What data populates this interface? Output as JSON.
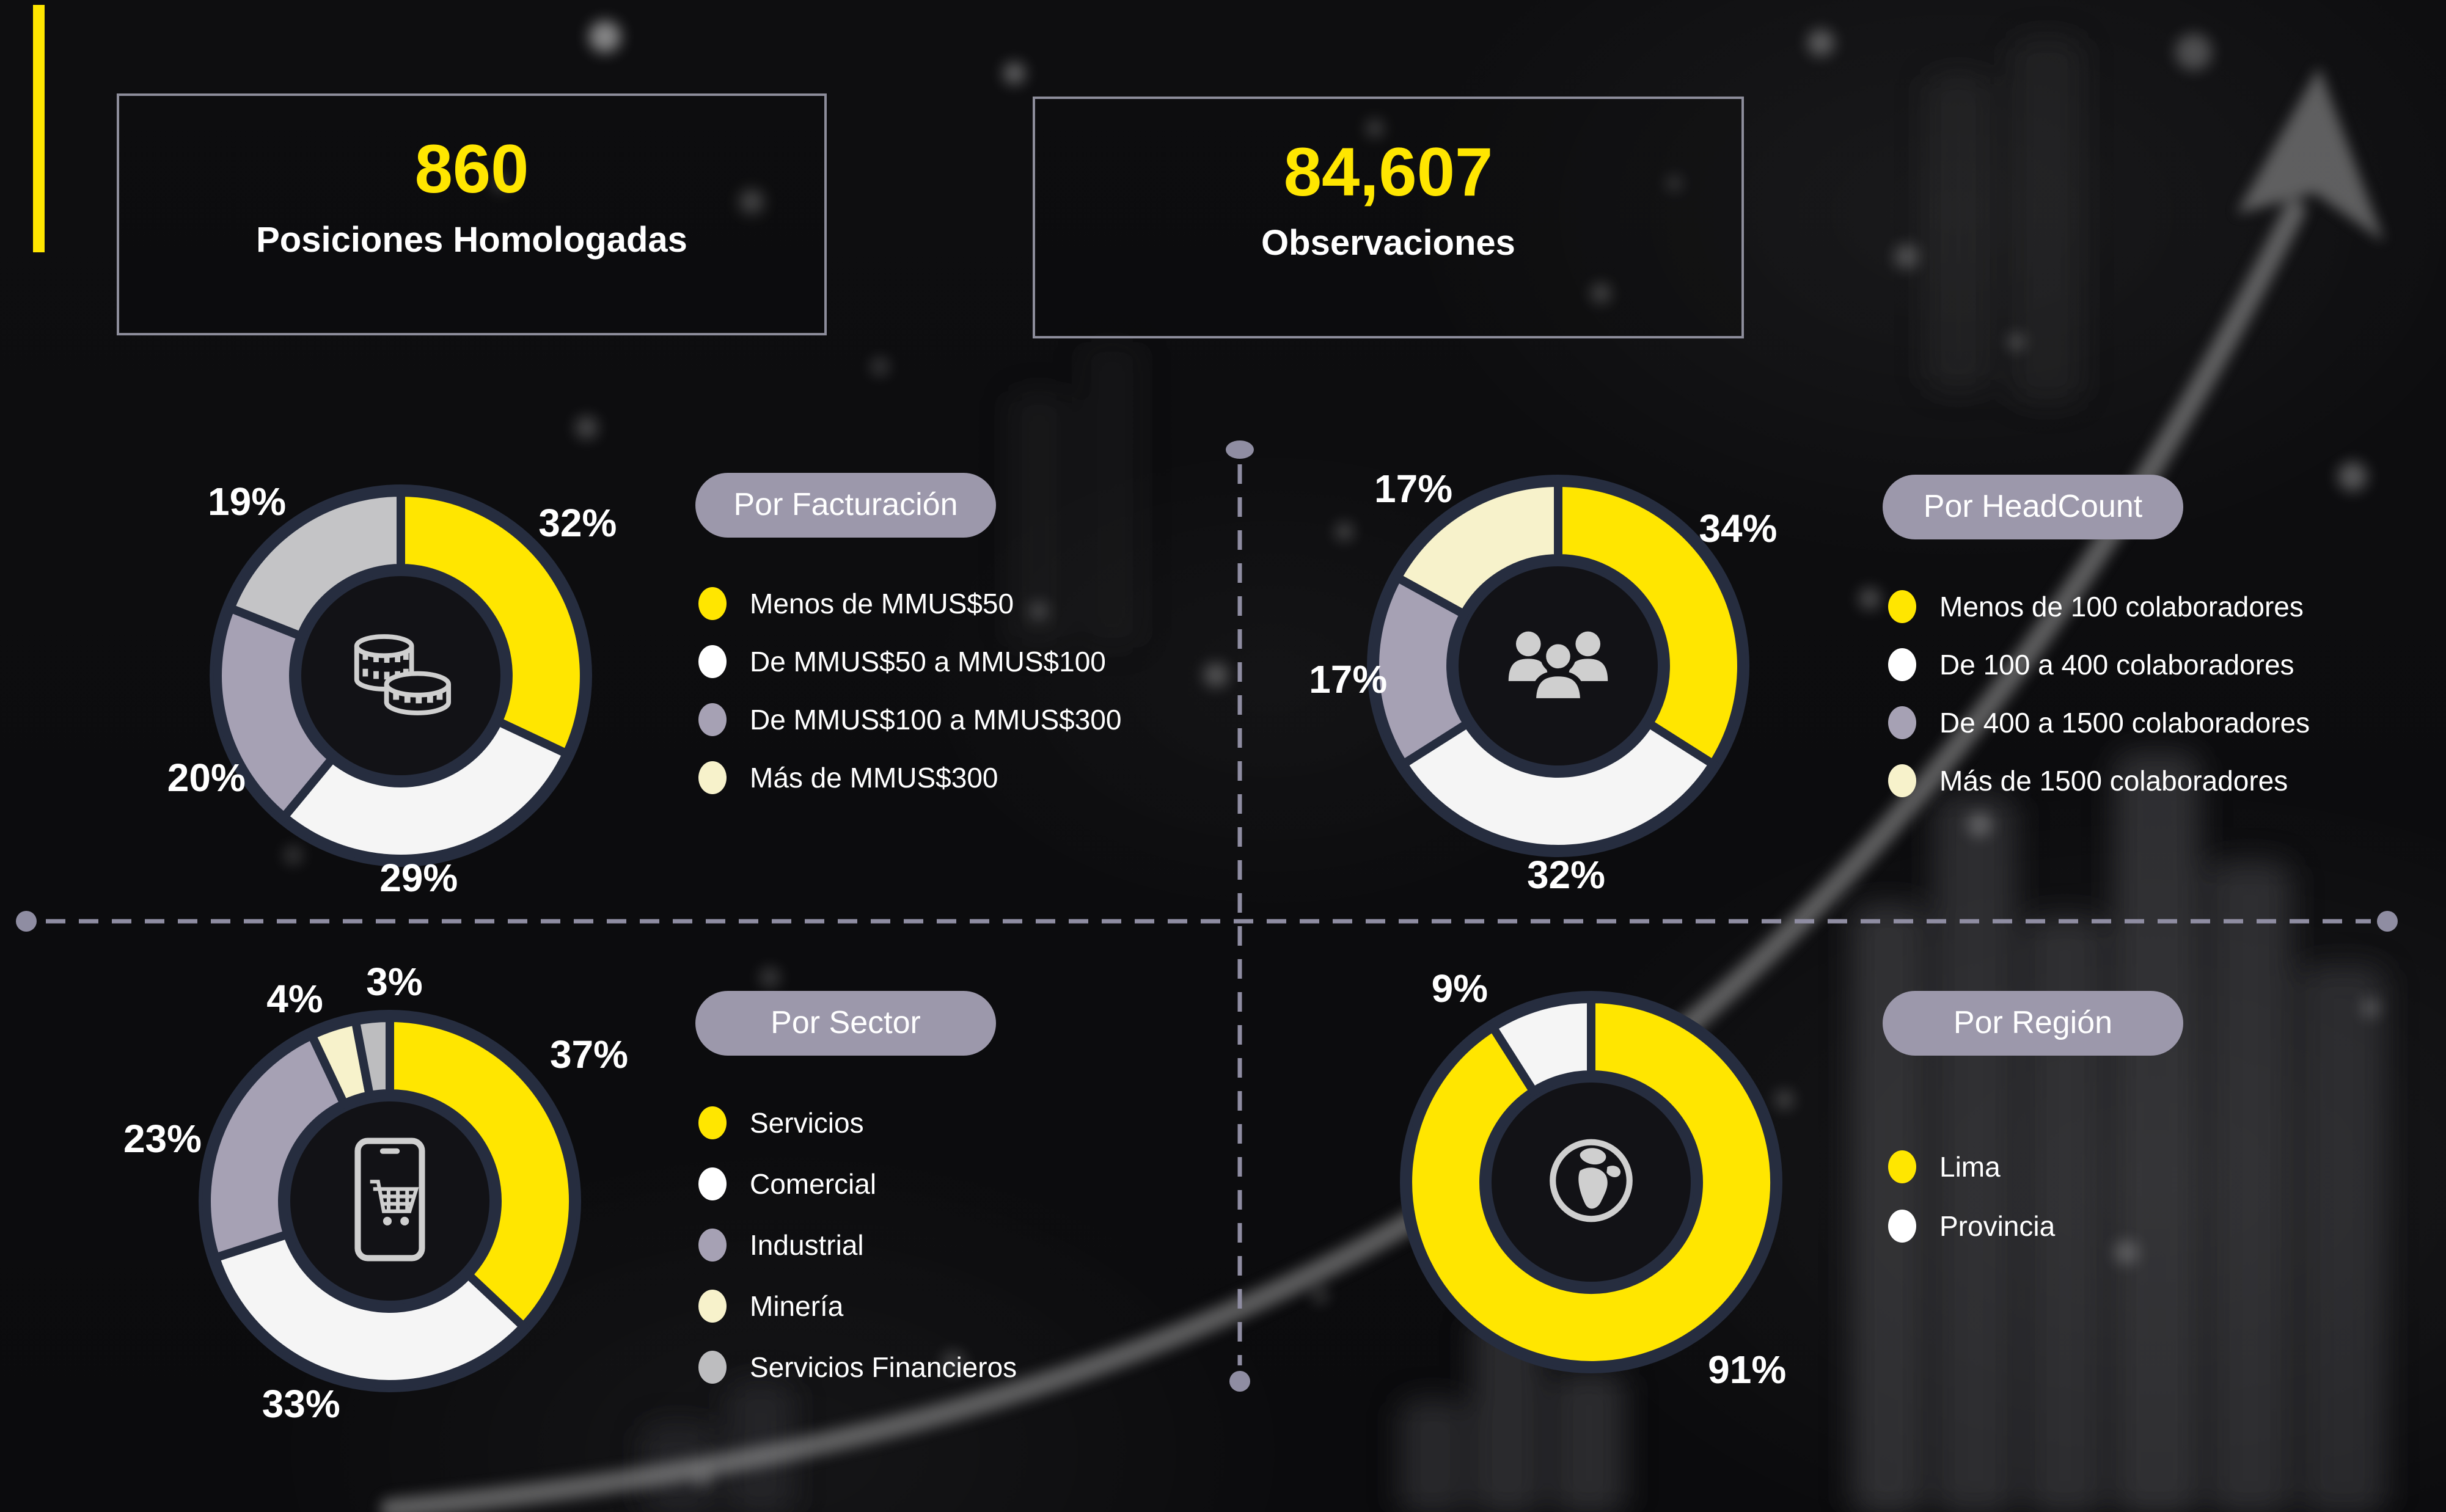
{
  "colors": {
    "accent_yellow": "#FFE600",
    "slice_white": "#F5F5F5",
    "slice_purple_gray": "#A6A1B4",
    "slice_light_gray": "#C4C4C6",
    "slice_cream": "#F7F2CB",
    "ring_navy": "#262D3F",
    "pill_background": "#9C98AB",
    "divider_gray": "#8F8DA2",
    "box_border_gray": "#8D8D9B",
    "background_dark": "#0E0E10"
  },
  "stats": [
    {
      "value": "860",
      "label": "Posiciones Homologadas"
    },
    {
      "value": "84,607",
      "label": "Observaciones"
    }
  ],
  "chart_data": [
    {
      "id": "facturacion",
      "type": "pie",
      "subtype": "donut",
      "title": "Por Facturación",
      "icon": "coins-icon",
      "units": "%",
      "segments": [
        {
          "label": "Menos de MMUS$50",
          "value": 32,
          "color": "#FFE600",
          "legend_color": "#FFE600"
        },
        {
          "label": "De MMUS$50 a MMUS$100",
          "value": 29,
          "color": "#F5F5F5",
          "legend_color": "#FFFFFF"
        },
        {
          "label": "De MMUS$100 a MMUS$300",
          "value": 20,
          "color": "#A6A1B4",
          "legend_color": "#A6A1B4"
        },
        {
          "label": "Más de MMUS$300",
          "value": 19,
          "color": "#C4C4C6",
          "legend_color": "#F7F2CB"
        }
      ]
    },
    {
      "id": "headcount",
      "type": "pie",
      "subtype": "donut",
      "title": "Por HeadCount",
      "icon": "people-icon",
      "units": "%",
      "segments": [
        {
          "label": "Menos de 100 colaboradores",
          "value": 34,
          "color": "#FFE600",
          "legend_color": "#FFE600"
        },
        {
          "label": "De 100 a 400 colaboradores",
          "value": 32,
          "color": "#F5F5F5",
          "legend_color": "#FFFFFF"
        },
        {
          "label": "De 400 a 1500 colaboradores",
          "value": 17,
          "color": "#A6A1B4",
          "legend_color": "#A6A1B4"
        },
        {
          "label": "Más de 1500 colaboradores",
          "value": 17,
          "color": "#F7F2CB",
          "legend_color": "#F7F2CB"
        }
      ]
    },
    {
      "id": "sector",
      "type": "pie",
      "subtype": "donut",
      "title": "Por Sector",
      "icon": "phone-cart-icon",
      "units": "%",
      "segments": [
        {
          "label": "Servicios",
          "value": 37,
          "color": "#FFE600",
          "legend_color": "#FFE600"
        },
        {
          "label": "Comercial",
          "value": 33,
          "color": "#F5F5F5",
          "legend_color": "#FFFFFF"
        },
        {
          "label": "Industrial",
          "value": 23,
          "color": "#A6A1B4",
          "legend_color": "#A6A1B4"
        },
        {
          "label": "Minería",
          "value": 4,
          "color": "#F7F2CB",
          "legend_color": "#F7F2CB"
        },
        {
          "label": "Servicios Financieros",
          "value": 3,
          "color": "#BDBDBF",
          "legend_color": "#BDBDBF"
        }
      ]
    },
    {
      "id": "region",
      "type": "pie",
      "subtype": "donut",
      "title": "Por Región",
      "icon": "globe-icon",
      "units": "%",
      "segments": [
        {
          "label": "Lima",
          "value": 91,
          "color": "#FFE600",
          "legend_color": "#FFE600"
        },
        {
          "label": "Provincia",
          "value": 9,
          "color": "#F5F5F5",
          "legend_color": "#FFFFFF"
        }
      ]
    }
  ]
}
